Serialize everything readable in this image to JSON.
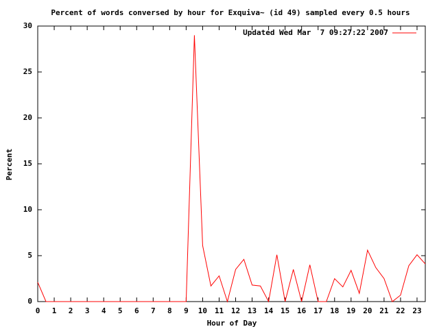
{
  "chart_data": {
    "type": "line",
    "title": "Percent of words conversed by hour for Exquiva~ (id 49) sampled every 0.5 hours",
    "x_label": "Hour of Day",
    "y_label": "Percent",
    "x": [
      0,
      0.5,
      1,
      1.5,
      2,
      2.5,
      3,
      3.5,
      4,
      4.5,
      5,
      5.5,
      6,
      6.5,
      7,
      7.5,
      8,
      8.5,
      9,
      9.5,
      10,
      10.5,
      11,
      11.5,
      12,
      12.5,
      13,
      13.5,
      14,
      14.5,
      15,
      15.5,
      16,
      16.5,
      17,
      17.5,
      18,
      18.5,
      19,
      19.5,
      20,
      20.5,
      21,
      21.5,
      22,
      22.5,
      23,
      23.5
    ],
    "series": [
      {
        "name": "Updated Wed Mar  7 09:27:22 2007",
        "color": "#ff0000",
        "values": [
          2.1,
          0,
          0,
          0,
          0,
          0,
          0,
          0,
          0,
          0,
          0,
          0,
          0,
          0,
          0,
          0,
          0,
          0,
          0,
          29,
          6.1,
          1.7,
          2.8,
          0,
          3.5,
          4.6,
          1.8,
          1.7,
          0,
          5.1,
          0,
          3.5,
          0,
          4.0,
          0,
          0,
          2.5,
          1.6,
          3.4,
          0.9,
          5.6,
          3.7,
          2.5,
          0,
          0.7,
          3.9,
          5.1,
          4.1
        ]
      }
    ],
    "xlim": [
      0,
      23.5
    ],
    "ylim": [
      0,
      30
    ],
    "xticks": [
      0,
      1,
      2,
      3,
      4,
      5,
      6,
      7,
      8,
      9,
      10,
      11,
      12,
      13,
      14,
      15,
      16,
      17,
      18,
      19,
      20,
      21,
      22,
      23
    ],
    "yticks": [
      0,
      5,
      10,
      15,
      20,
      25,
      30
    ],
    "legend": "top-right",
    "grid": false
  }
}
